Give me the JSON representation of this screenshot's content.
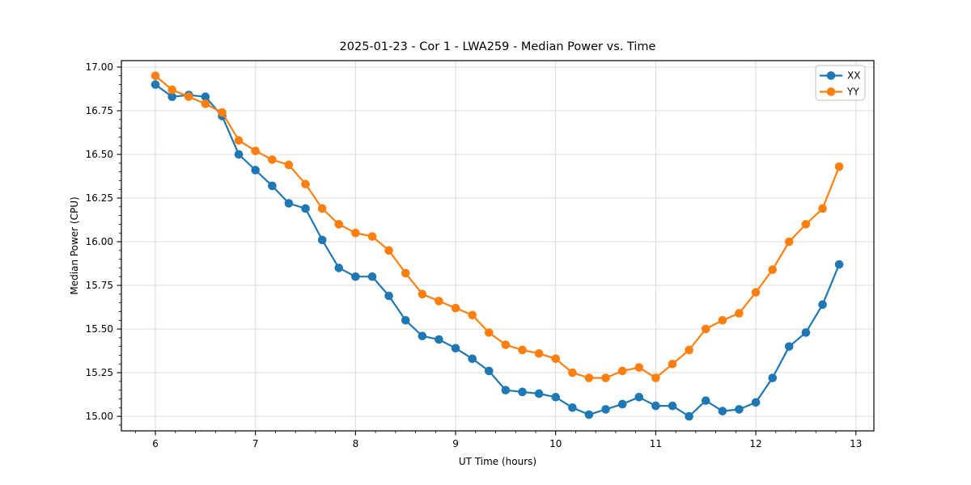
{
  "chart_data": {
    "type": "line",
    "title": "2025-01-23 - Cor 1 - LWA259 - Median Power vs. Time",
    "xlabel": "UT Time (hours)",
    "ylabel": "Median Power (CPU)",
    "xlim": [
      5.66,
      13.18
    ],
    "ylim": [
      14.917,
      17.037
    ],
    "xticks": [
      6,
      7,
      8,
      9,
      10,
      11,
      12,
      13
    ],
    "yticks": [
      15.0,
      15.25,
      15.5,
      15.75,
      16.0,
      16.25,
      16.5,
      16.75,
      17.0
    ],
    "x_minor_step": 0.2,
    "y_minor_step": 0.05,
    "grid": true,
    "grid_color": "#d9d9d9",
    "legend_position": "upper-right",
    "x": [
      6.0,
      6.167,
      6.333,
      6.5,
      6.667,
      6.833,
      7.0,
      7.167,
      7.333,
      7.5,
      7.667,
      7.833,
      8.0,
      8.167,
      8.333,
      8.5,
      8.667,
      8.833,
      9.0,
      9.167,
      9.333,
      9.5,
      9.667,
      9.833,
      10.0,
      10.167,
      10.333,
      10.5,
      10.667,
      10.833,
      11.0,
      11.167,
      11.333,
      11.5,
      11.667,
      11.833,
      12.0,
      12.167,
      12.333,
      12.5,
      12.667,
      12.833
    ],
    "series": [
      {
        "name": "XX",
        "color": "#1f77b4",
        "marker": "circle",
        "values": [
          16.9,
          16.83,
          16.84,
          16.83,
          16.72,
          16.5,
          16.41,
          16.32,
          16.22,
          16.19,
          16.01,
          15.85,
          15.8,
          15.8,
          15.69,
          15.55,
          15.46,
          15.44,
          15.39,
          15.33,
          15.26,
          15.15,
          15.14,
          15.13,
          15.11,
          15.05,
          15.01,
          15.04,
          15.07,
          15.11,
          15.06,
          15.06,
          15.0,
          15.09,
          15.03,
          15.04,
          15.08,
          15.22,
          15.4,
          15.48,
          15.64,
          15.87
        ]
      },
      {
        "name": "YY",
        "color": "#ff7f0e",
        "marker": "circle",
        "values": [
          16.95,
          16.87,
          16.83,
          16.79,
          16.74,
          16.58,
          16.52,
          16.47,
          16.44,
          16.33,
          16.19,
          16.1,
          16.05,
          16.03,
          15.95,
          15.82,
          15.7,
          15.66,
          15.62,
          15.58,
          15.48,
          15.41,
          15.38,
          15.36,
          15.33,
          15.25,
          15.22,
          15.22,
          15.26,
          15.28,
          15.22,
          15.3,
          15.38,
          15.5,
          15.55,
          15.59,
          15.71,
          15.84,
          16.0,
          16.1,
          16.19,
          16.43
        ]
      }
    ]
  }
}
